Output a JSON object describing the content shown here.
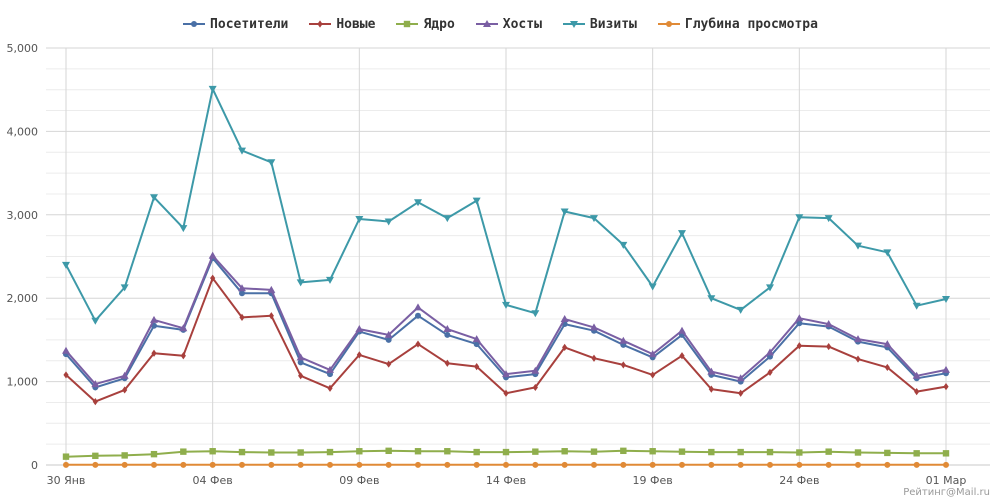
{
  "watermark": "Рейтинг@Mail.ru",
  "chart_data": {
    "type": "line",
    "y_ticks": [
      "0",
      "1,000",
      "2,000",
      "3,000",
      "4,000",
      "5,000"
    ],
    "ylim": [
      0,
      5000
    ],
    "x_tick_labels": [
      {
        "day": 0,
        "label": "30 Янв"
      },
      {
        "day": 5,
        "label": "04 Фев"
      },
      {
        "day": 10,
        "label": "09 Фев"
      },
      {
        "day": 15,
        "label": "14 Фев"
      },
      {
        "day": 20,
        "label": "19 Фев"
      },
      {
        "day": 25,
        "label": "24 Фев"
      },
      {
        "day": 30,
        "label": "01 Мар"
      }
    ],
    "grid": true,
    "legend_position": "top-center",
    "series": [
      {
        "name": "Посетители",
        "color": "#4a70a6",
        "marker": "circle",
        "values": [
          1330,
          930,
          1040,
          1670,
          1620,
          2480,
          2060,
          2060,
          1230,
          1090,
          1600,
          1500,
          1790,
          1560,
          1450,
          1050,
          1090,
          1690,
          1610,
          1440,
          1290,
          1560,
          1080,
          1000,
          1300,
          1700,
          1660,
          1480,
          1410,
          1040,
          1100
        ]
      },
      {
        "name": "Новые",
        "color": "#a8403d",
        "marker": "diamond",
        "values": [
          1080,
          760,
          900,
          1340,
          1310,
          2240,
          1770,
          1790,
          1070,
          920,
          1320,
          1210,
          1450,
          1220,
          1180,
          860,
          930,
          1410,
          1280,
          1200,
          1080,
          1310,
          910,
          860,
          1110,
          1430,
          1420,
          1270,
          1170,
          880,
          940
        ]
      },
      {
        "name": "Ядро",
        "color": "#8fae4c",
        "marker": "square",
        "values": [
          100,
          110,
          115,
          130,
          160,
          165,
          155,
          150,
          150,
          155,
          165,
          170,
          165,
          165,
          155,
          155,
          160,
          165,
          160,
          170,
          165,
          160,
          155,
          155,
          155,
          150,
          160,
          150,
          145,
          140,
          140
        ]
      },
      {
        "name": "Хосты",
        "color": "#7a5fa3",
        "marker": "triangle",
        "values": [
          1370,
          970,
          1070,
          1740,
          1640,
          2510,
          2120,
          2100,
          1290,
          1140,
          1630,
          1560,
          1890,
          1630,
          1510,
          1090,
          1130,
          1750,
          1650,
          1490,
          1330,
          1610,
          1120,
          1040,
          1350,
          1760,
          1690,
          1510,
          1450,
          1070,
          1140
        ]
      },
      {
        "name": "Визиты",
        "color": "#3d99a8",
        "marker": "triangle-down",
        "values": [
          2400,
          1730,
          2130,
          3210,
          2840,
          4510,
          3770,
          3630,
          2190,
          2220,
          2950,
          2920,
          3150,
          2960,
          3170,
          1920,
          1820,
          3040,
          2960,
          2640,
          2140,
          2780,
          2000,
          1860,
          2130,
          2970,
          2960,
          2630,
          2550,
          1910,
          1990
        ]
      },
      {
        "name": "Глубина просмотра",
        "color": "#e08a36",
        "marker": "circle",
        "values": [
          2,
          2,
          2,
          2,
          2,
          2,
          2,
          2,
          2,
          2,
          2,
          2,
          2,
          2,
          2,
          2,
          2,
          2,
          2,
          2,
          2,
          2,
          2,
          2,
          2,
          2,
          2,
          2,
          2,
          2,
          2
        ]
      }
    ]
  }
}
